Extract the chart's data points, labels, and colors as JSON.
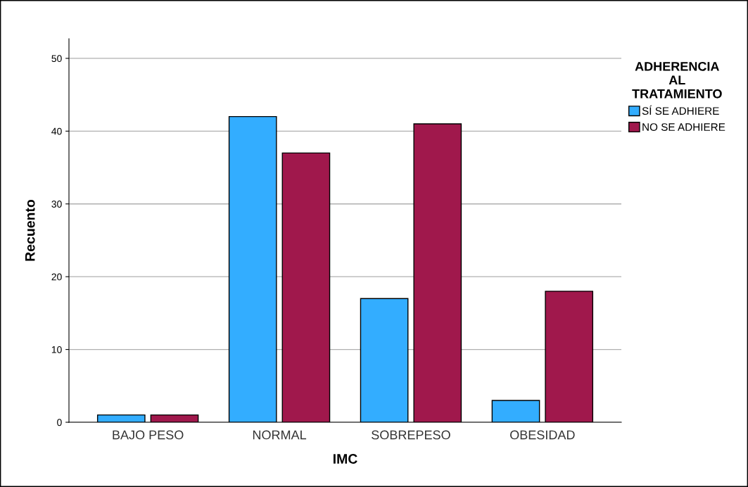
{
  "chart_data": {
    "type": "bar",
    "xlabel": "IMC",
    "ylabel": "Recuento",
    "legend_title": "ADHERENCIA\nAL\nTRATAMIENTO",
    "categories": [
      "BAJO PESO",
      "NORMAL",
      "SOBREPESO",
      "OBESIDAD"
    ],
    "series": [
      {
        "name": "SÍ SE ADHIERE",
        "color": "#33adff",
        "values": [
          1,
          42,
          17,
          3
        ]
      },
      {
        "name": "NO SE ADHIERE",
        "color": "#a0184c",
        "values": [
          1,
          37,
          41,
          18
        ]
      }
    ],
    "ylim": [
      0,
      52.7
    ],
    "yticks": [
      0,
      10,
      20,
      30,
      40,
      50
    ],
    "grid": "y",
    "legend": "top right"
  }
}
